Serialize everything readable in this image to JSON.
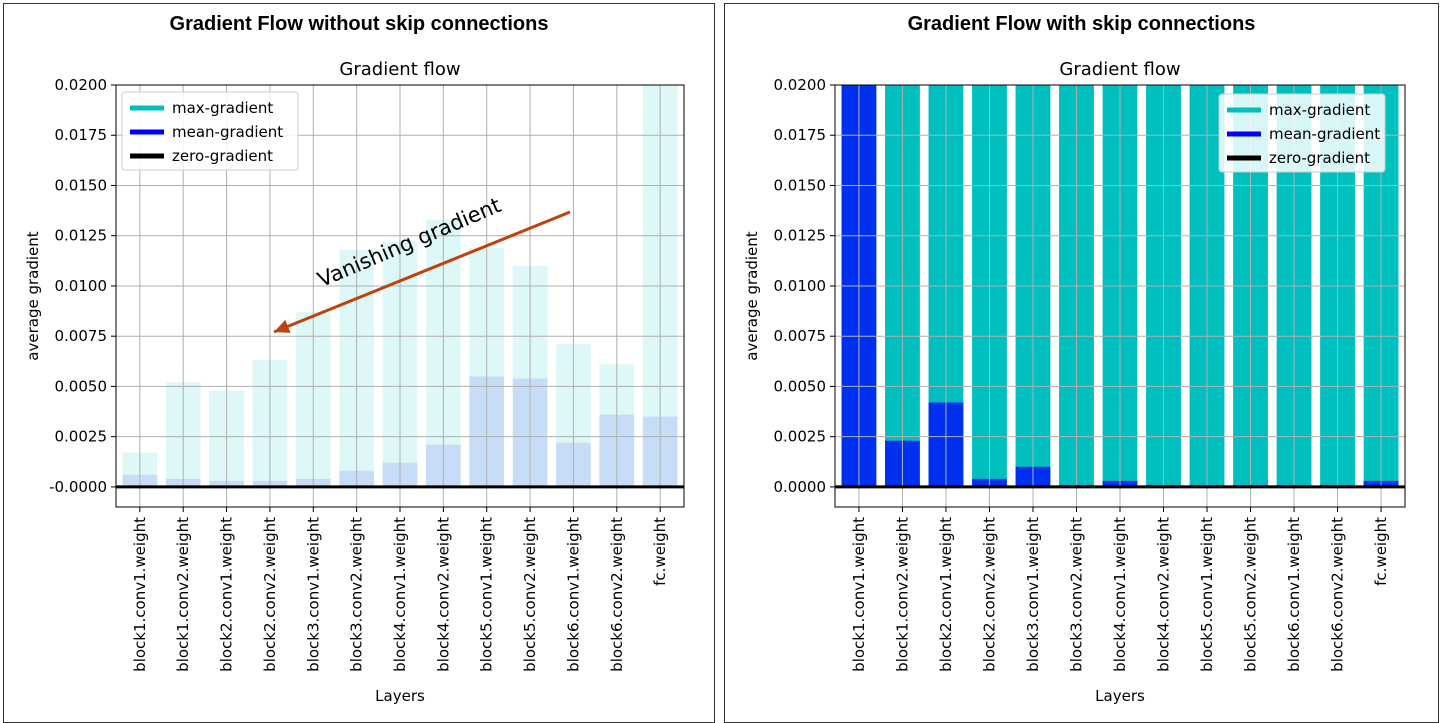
{
  "panels": [
    {
      "title": "Gradient Flow without skip connections"
    },
    {
      "title": "Gradient Flow with skip connections"
    }
  ],
  "colors": {
    "max": "#00bfbf",
    "mean": "#0000ff",
    "zero": "#000000",
    "annotation": "#c0410e",
    "grid": "#b0b0b0"
  },
  "chart_data": [
    {
      "type": "bar",
      "title": "Gradient flow",
      "xlabel": "Layers",
      "ylabel": "average gradient",
      "ylim": [
        -0.001,
        0.02
      ],
      "yticks": [
        "-0.0000",
        "0.0025",
        "0.0050",
        "0.0075",
        "0.0100",
        "0.0125",
        "0.0150",
        "0.0175",
        "0.0200"
      ],
      "grid": true,
      "legend_position": "top-left",
      "categories": [
        "block1.conv1.weight",
        "block1.conv2.weight",
        "block2.conv1.weight",
        "block2.conv2.weight",
        "block3.conv1.weight",
        "block3.conv2.weight",
        "block4.conv1.weight",
        "block4.conv2.weight",
        "block5.conv1.weight",
        "block5.conv2.weight",
        "block6.conv1.weight",
        "block6.conv2.weight",
        "fc.weight"
      ],
      "series": [
        {
          "name": "max-gradient",
          "values": [
            0.0017,
            0.0052,
            0.0048,
            0.0063,
            0.0087,
            0.0118,
            0.0122,
            0.0133,
            0.0119,
            0.011,
            0.0071,
            0.0061,
            0.0201
          ]
        },
        {
          "name": "mean-gradient",
          "values": [
            0.0006,
            0.0004,
            0.0003,
            0.0003,
            0.0004,
            0.0008,
            0.0012,
            0.0021,
            0.0055,
            0.0054,
            0.0022,
            0.0036,
            0.0035
          ]
        },
        {
          "name": "zero-gradient",
          "values": [
            0,
            0,
            0,
            0,
            0,
            0,
            0,
            0,
            0,
            0,
            0,
            0,
            0
          ]
        }
      ],
      "annotation": {
        "text": "Vanishing gradient"
      }
    },
    {
      "type": "bar",
      "title": "Gradient flow",
      "xlabel": "Layers",
      "ylabel": "average gradient",
      "ylim": [
        -0.001,
        0.02
      ],
      "yticks": [
        "0.0000",
        "0.0025",
        "0.0050",
        "0.0075",
        "0.0100",
        "0.0125",
        "0.0150",
        "0.0175",
        "0.0200"
      ],
      "grid": true,
      "legend_position": "top-right",
      "categories": [
        "block1.conv1.weight",
        "block1.conv2.weight",
        "block2.conv1.weight",
        "block2.conv2.weight",
        "block3.conv1.weight",
        "block3.conv2.weight",
        "block4.conv1.weight",
        "block4.conv2.weight",
        "block5.conv1.weight",
        "block5.conv2.weight",
        "block6.conv1.weight",
        "block6.conv2.weight",
        "fc.weight"
      ],
      "series": [
        {
          "name": "max-gradient",
          "values": [
            0.02,
            0.02,
            0.02,
            0.02,
            0.02,
            0.02,
            0.02,
            0.02,
            0.02,
            0.02,
            0.02,
            0.02,
            0.02
          ]
        },
        {
          "name": "mean-gradient",
          "values": [
            0.02,
            0.0023,
            0.0042,
            0.0004,
            0.001,
            0.0001,
            0.0003,
            0.0001,
            0.0001,
            0.0001,
            0.0001,
            0.0001,
            0.0003
          ]
        },
        {
          "name": "zero-gradient",
          "values": [
            0,
            0,
            0,
            0,
            0,
            0,
            0,
            0,
            0,
            0,
            0,
            0,
            0
          ]
        }
      ]
    }
  ]
}
